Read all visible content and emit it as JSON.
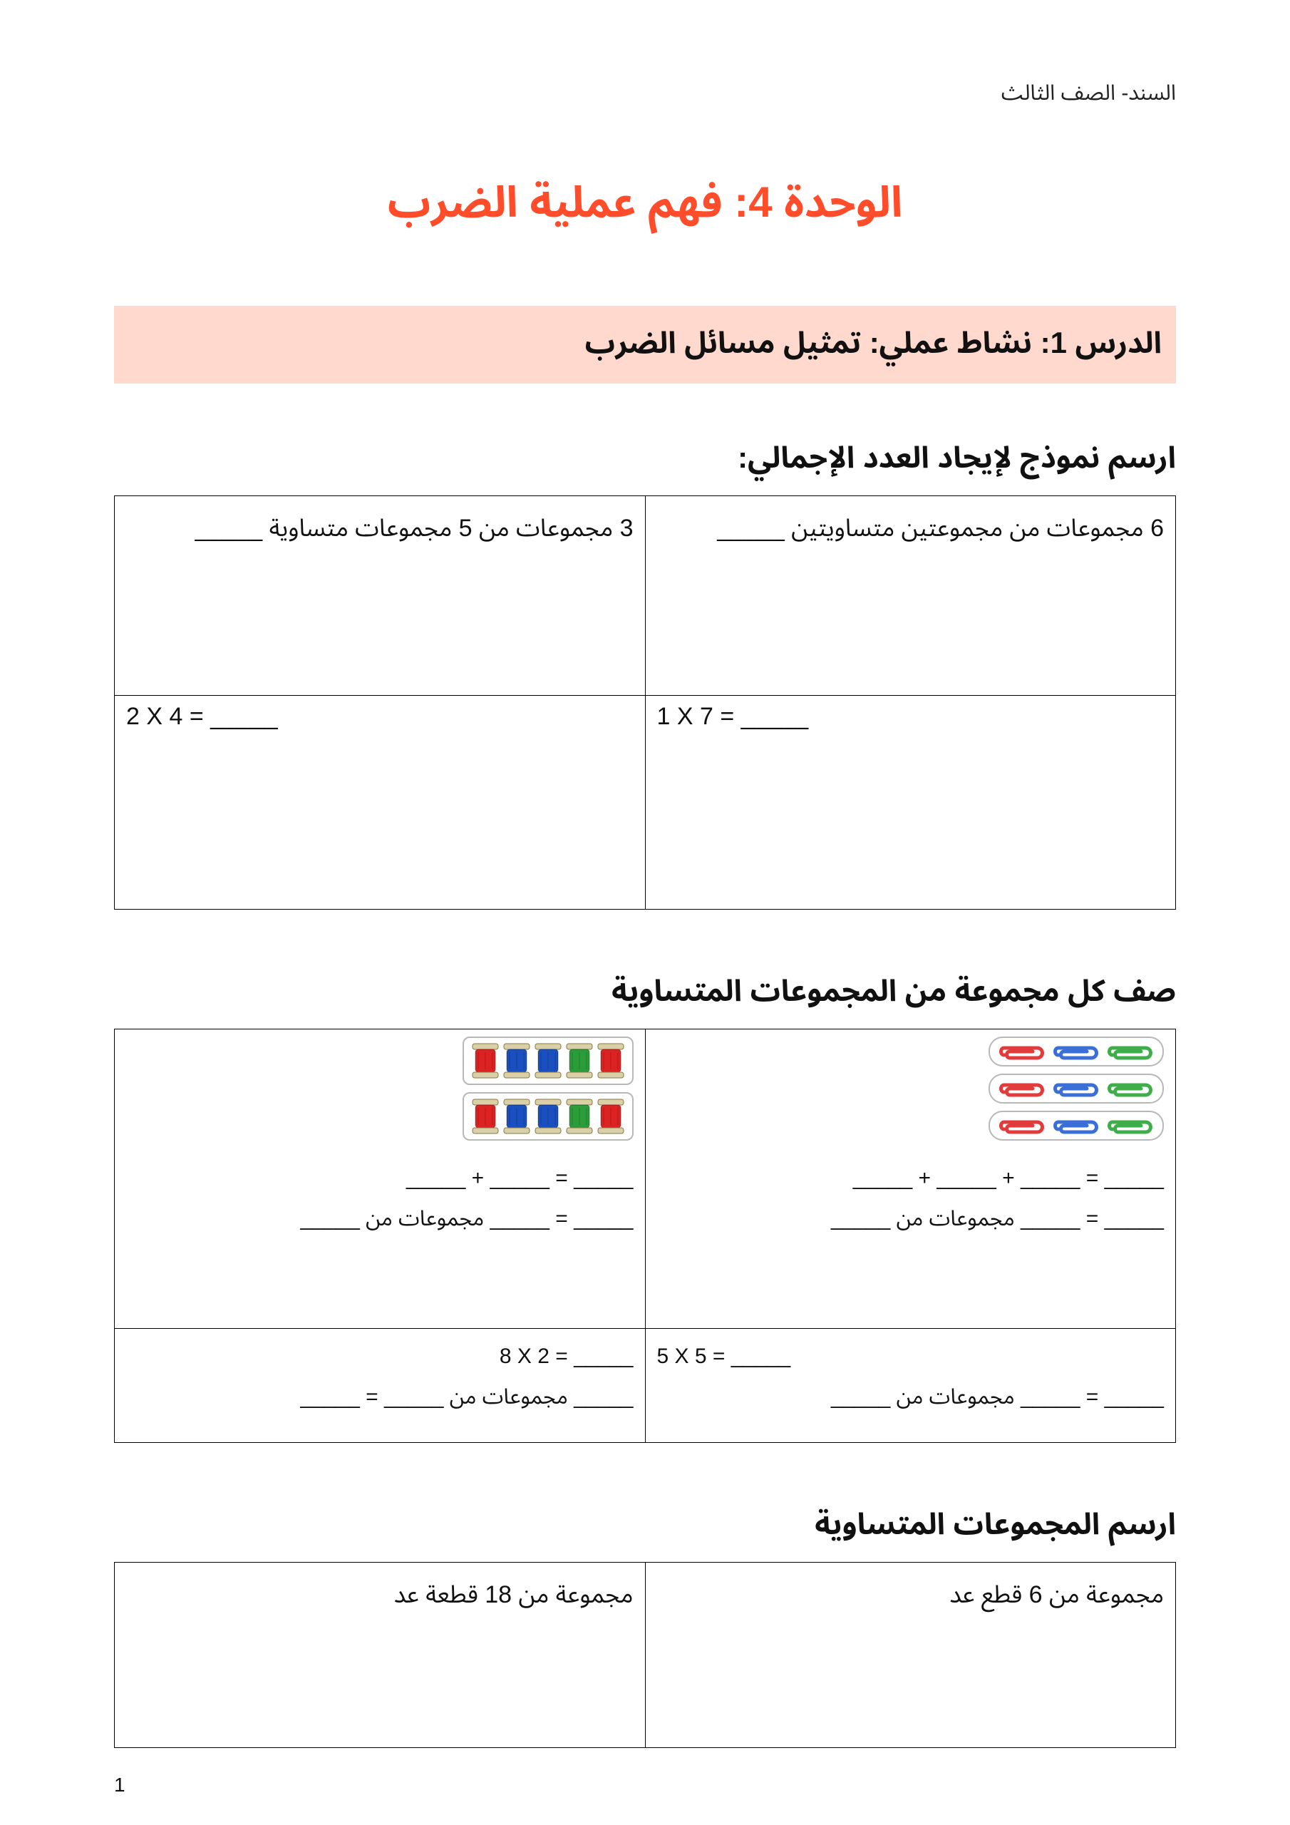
{
  "header": "السند- الصف الثالث",
  "unit_title": "الوحدة 4: فهم عملية الضرب",
  "lesson_banner": "الدرس 1: نشاط عملي: تمثيل مسائل الضرب",
  "section1": {
    "heading": "ارسم نموذج لإيجاد العدد الإجمالي:",
    "cell_top_right": "6 مجموعات من مجموعتين متساويتين _____",
    "cell_top_left": "3 مجموعات من 5 مجموعات متساوية _____",
    "cell_bot_right": "1 X 7 = _____",
    "cell_bot_left": "2 X 4 = _____"
  },
  "section2": {
    "heading": "صف كل مجموعة من المجموعات المتساوية",
    "right_cell": {
      "clip_rows": 3,
      "clip_colors": [
        [
          "#e23b3b",
          "#3a6fd8",
          "#3fae4a"
        ],
        [
          "#e23b3b",
          "#3a6fd8",
          "#3fae4a"
        ],
        [
          "#e23b3b",
          "#3a6fd8",
          "#3fae4a"
        ]
      ],
      "line1": "_____ + _____ + _____ = _____",
      "line2_pre": "_____",
      "line2_word": "مجموعات من",
      "line2_post": "_____ = _____"
    },
    "left_cell": {
      "spool_rows": 2,
      "spool_colors": [
        [
          "#d22",
          "#1a4fbf",
          "#1a4fbf",
          "#2a9d3a",
          "#d22"
        ],
        [
          "#d22",
          "#1a4fbf",
          "#1a4fbf",
          "#2a9d3a",
          "#d22"
        ]
      ],
      "line1": "_____ + _____ = _____",
      "line2_pre": "_____",
      "line2_word": "مجموعات من",
      "line2_post": "_____ = _____"
    },
    "row2_right": {
      "eq": "5 X 5 = _____",
      "line2": "_____ = _____ مجموعات من _____"
    },
    "row2_left": {
      "eq": "8 X 2 = _____",
      "line2": "_____ مجموعات من _____ = _____"
    }
  },
  "section3": {
    "heading": "ارسم المجموعات المتساوية",
    "cell_right": "مجموعة من 6 قطع عد",
    "cell_left": "مجموعة من 18 قطعة عد"
  },
  "page_number": "1",
  "colors": {
    "title": "#ff4c2b",
    "banner_bg": "#ffd9ce",
    "border": "#000000",
    "text": "#111111"
  }
}
